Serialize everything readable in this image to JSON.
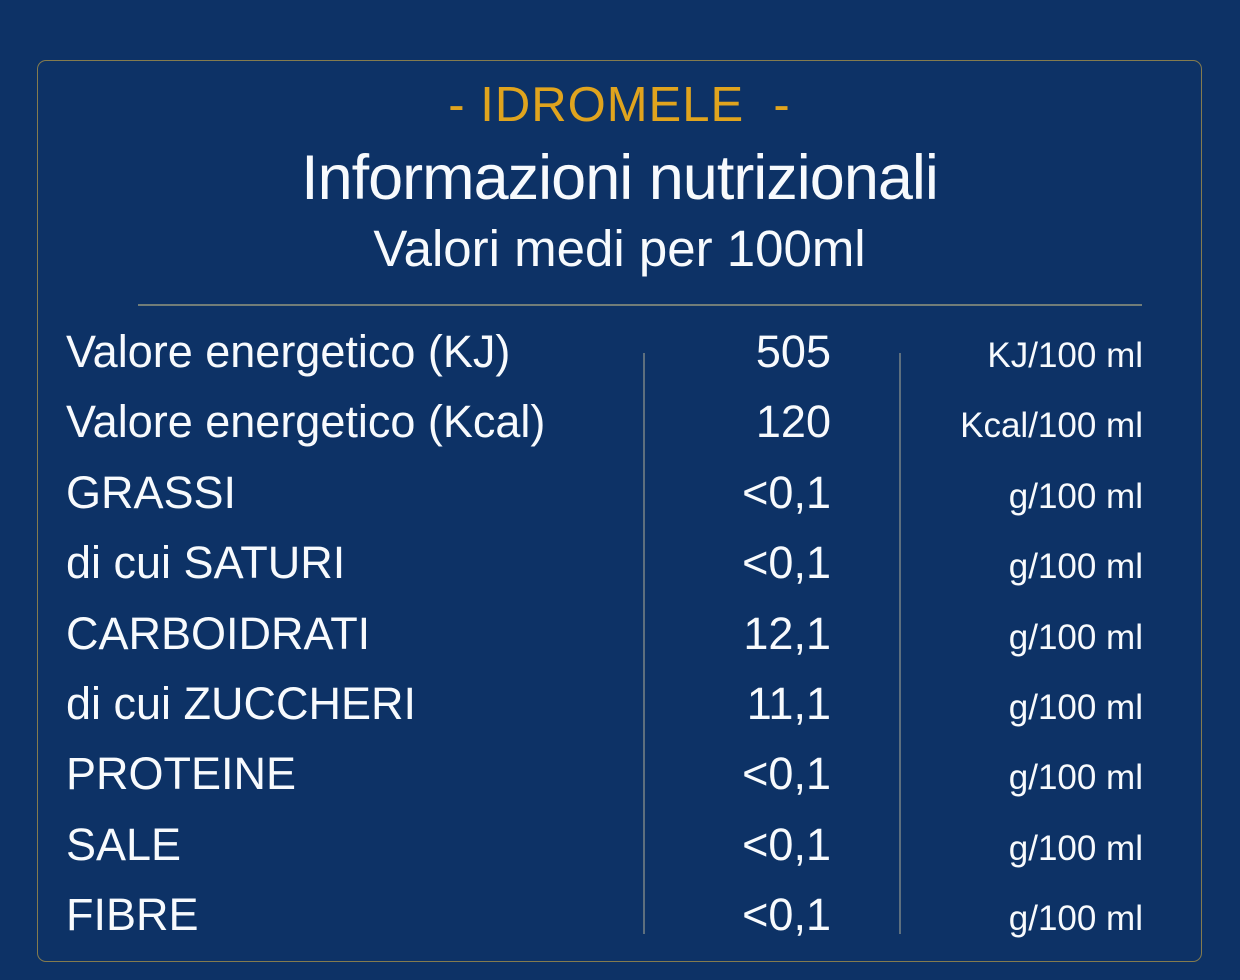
{
  "colors": {
    "background": "#0d3266",
    "accent_gold": "#e0a41e",
    "text": "#ffffff",
    "border": "#847b4e",
    "divider": "#717d78"
  },
  "header": {
    "brand": "- IDROMELE  -",
    "title": "Informazioni nutrizionali",
    "subtitle": "Valori medi per 100ml"
  },
  "table": {
    "rows": [
      {
        "label": "Valore energetico (KJ)",
        "value": "505",
        "unit": "KJ/100 ml"
      },
      {
        "label": "Valore energetico (Kcal)",
        "value": "120",
        "unit": "Kcal/100 ml"
      },
      {
        "label": "GRASSI",
        "value": "<0,1",
        "unit": "g/100 ml"
      },
      {
        "label": "di cui SATURI",
        "value": "<0,1",
        "unit": "g/100 ml"
      },
      {
        "label": "CARBOIDRATI",
        "value": "12,1",
        "unit": "g/100 ml"
      },
      {
        "label": "di cui ZUCCHERI",
        "value": "11,1",
        "unit": "g/100 ml"
      },
      {
        "label": "PROTEINE",
        "value": "<0,1",
        "unit": "g/100 ml"
      },
      {
        "label": "SALE",
        "value": "<0,1",
        "unit": "g/100 ml"
      },
      {
        "label": "FIBRE",
        "value": "<0,1",
        "unit": "g/100 ml"
      }
    ]
  }
}
